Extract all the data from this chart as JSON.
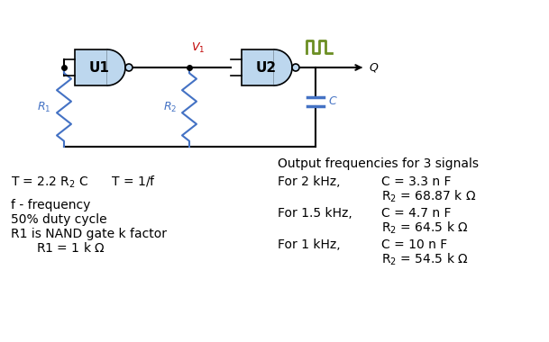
{
  "bg_color": "#ffffff",
  "circuit": {
    "u1_label": "U1",
    "u2_label": "U2"
  },
  "table_title": "Output frequencies for 3 signals",
  "colors": {
    "black": "#000000",
    "blue": "#4472C4",
    "red": "#C00000",
    "olive": "#6B8E23",
    "gray_fill": "#BDD7EE",
    "gray_stroke": "#5B9BD5"
  }
}
